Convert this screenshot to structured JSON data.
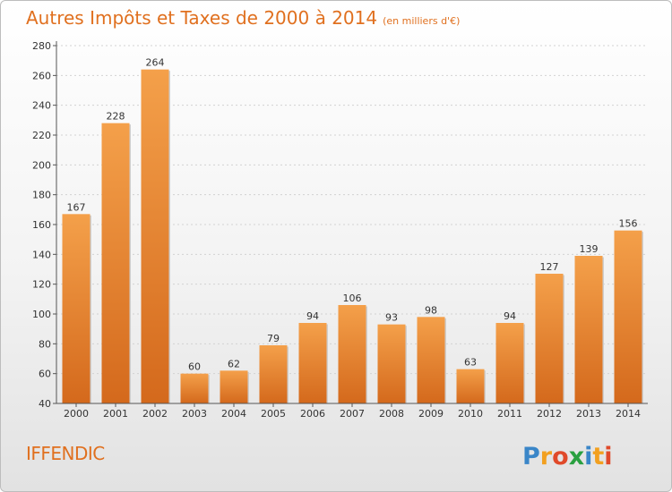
{
  "chart_data": {
    "type": "bar",
    "title": "Autres Impôts et Taxes de 2000 à 2014",
    "subtitle": "(en milliers d'€)",
    "categories": [
      "2000",
      "2001",
      "2002",
      "2003",
      "2004",
      "2005",
      "2006",
      "2007",
      "2008",
      "2009",
      "2010",
      "2011",
      "2012",
      "2013",
      "2014"
    ],
    "values": [
      167,
      228,
      264,
      60,
      62,
      79,
      94,
      106,
      93,
      98,
      63,
      94,
      127,
      139,
      156
    ],
    "ylim": [
      40,
      280
    ],
    "yticks": [
      40,
      60,
      80,
      100,
      120,
      140,
      160,
      180,
      200,
      220,
      240,
      260,
      280
    ],
    "grid": true,
    "bar_color": "#f4a04a",
    "bar_color_dark": "#d4691c"
  },
  "commune": "IFFENDIC",
  "logo_text": "Proxiti"
}
